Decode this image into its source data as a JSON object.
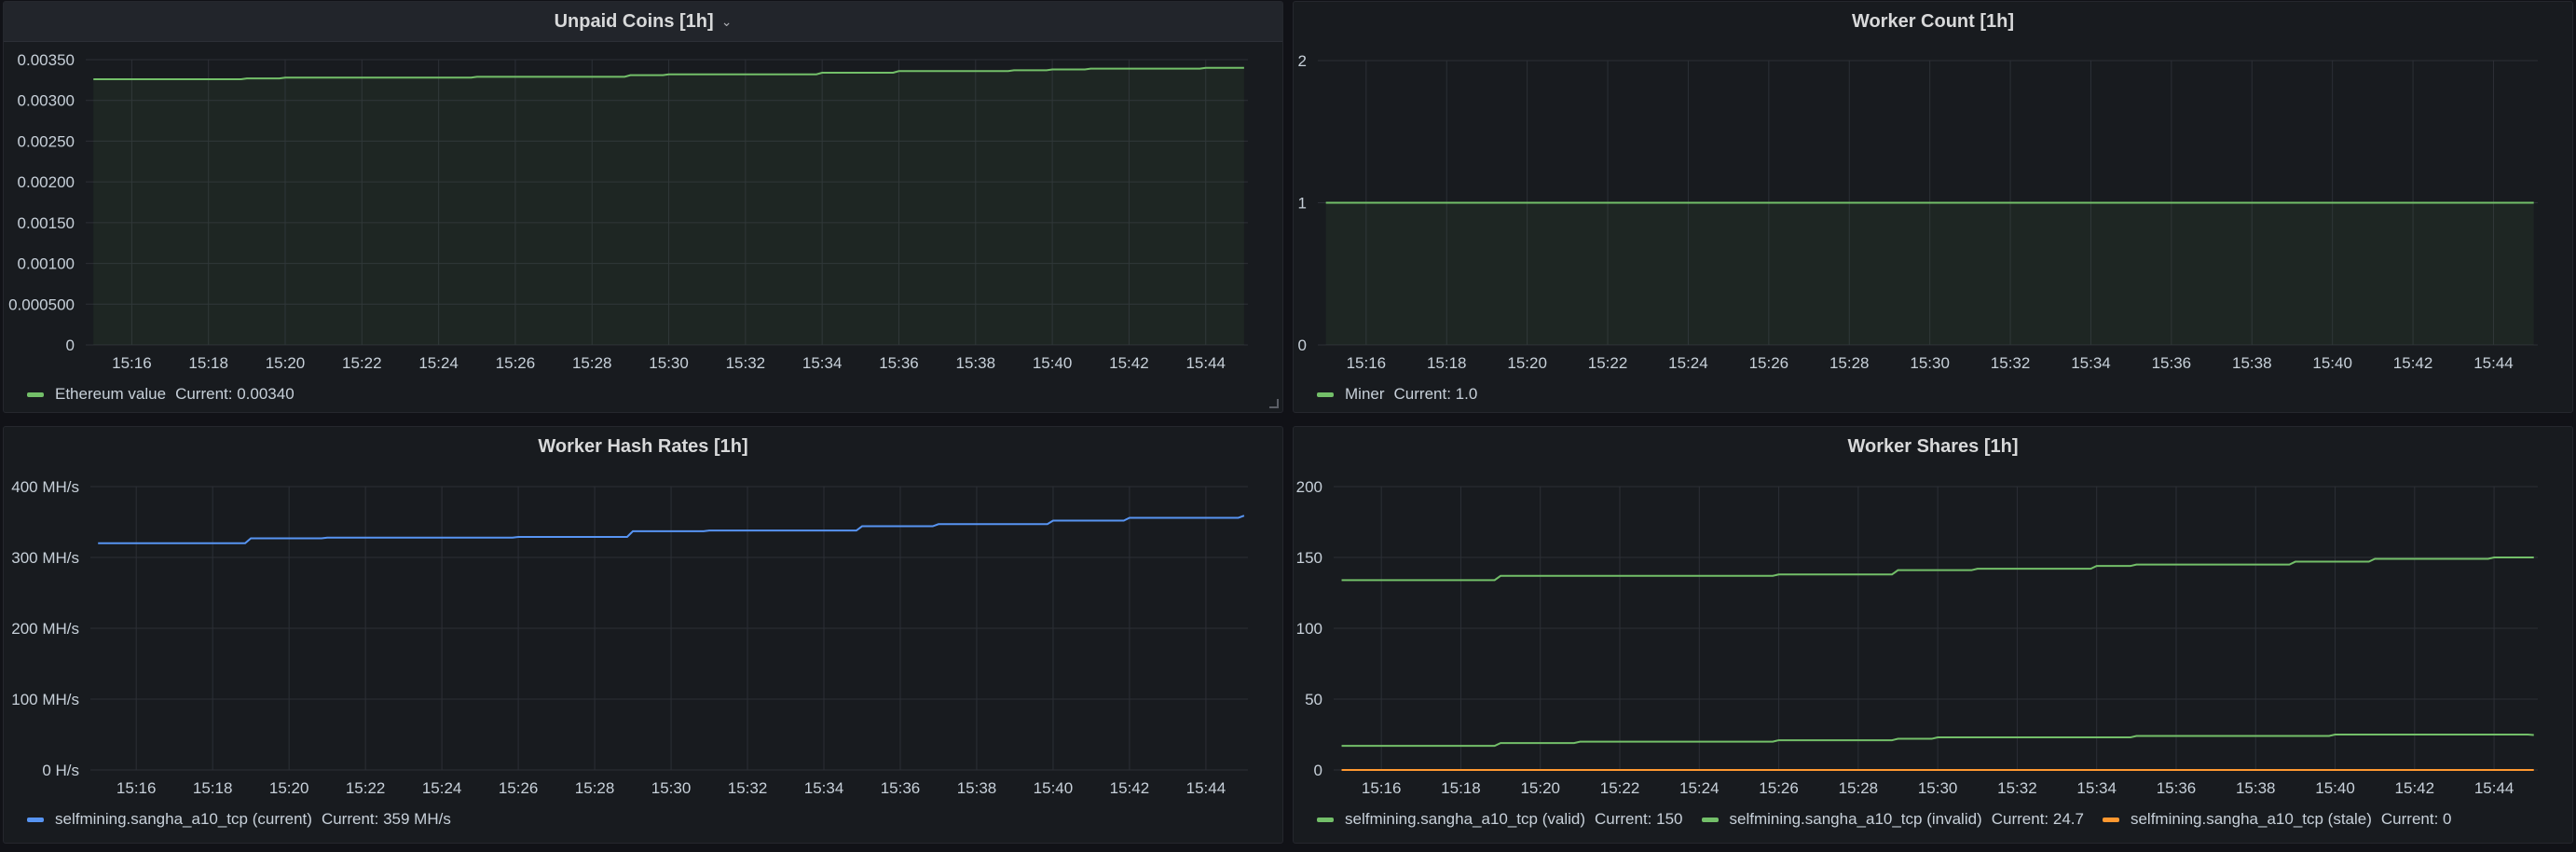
{
  "chart_data": [
    {
      "type": "area",
      "title": "Unpaid Coins [1h]",
      "x": [
        "15:15",
        "15:16",
        "15:17",
        "15:18",
        "15:19",
        "15:20",
        "15:21",
        "15:22",
        "15:23",
        "15:24",
        "15:25",
        "15:26",
        "15:27",
        "15:28",
        "15:29",
        "15:30",
        "15:31",
        "15:32",
        "15:33",
        "15:34",
        "15:35",
        "15:36",
        "15:37",
        "15:38",
        "15:39",
        "15:40",
        "15:41",
        "15:42",
        "15:43",
        "15:44",
        "15:45"
      ],
      "xticks": [
        "15:16",
        "15:18",
        "15:20",
        "15:22",
        "15:24",
        "15:26",
        "15:28",
        "15:30",
        "15:32",
        "15:34",
        "15:36",
        "15:38",
        "15:40",
        "15:42",
        "15:44"
      ],
      "yticks": [
        "0",
        "0.000500",
        "0.00100",
        "0.00150",
        "0.00200",
        "0.00250",
        "0.00300",
        "0.00350"
      ],
      "ylim": [
        0,
        0.0035
      ],
      "series": [
        {
          "name": "Ethereum value",
          "color": "#73bf69",
          "values": [
            0.00326,
            0.00326,
            0.00326,
            0.00326,
            0.00327,
            0.00328,
            0.00328,
            0.00328,
            0.00328,
            0.00328,
            0.00329,
            0.00329,
            0.00329,
            0.00329,
            0.00331,
            0.00332,
            0.00332,
            0.00332,
            0.00332,
            0.00334,
            0.00334,
            0.00336,
            0.00336,
            0.00336,
            0.00337,
            0.00338,
            0.00339,
            0.00339,
            0.00339,
            0.0034,
            0.0034
          ],
          "legend_current": "Current: 0.00340"
        }
      ]
    },
    {
      "type": "area",
      "title": "Worker Count [1h]",
      "x": [
        "15:15",
        "15:45"
      ],
      "xticks": [
        "15:16",
        "15:18",
        "15:20",
        "15:22",
        "15:24",
        "15:26",
        "15:28",
        "15:30",
        "15:32",
        "15:34",
        "15:36",
        "15:38",
        "15:40",
        "15:42",
        "15:44"
      ],
      "yticks": [
        "0",
        "1",
        "2"
      ],
      "ylim": [
        0,
        2
      ],
      "series": [
        {
          "name": "Miner",
          "color": "#73bf69",
          "values": [
            1,
            1
          ],
          "legend_current": "Current: 1.0"
        }
      ]
    },
    {
      "type": "line",
      "title": "Worker Hash Rates [1h]",
      "x": [
        "15:15",
        "15:16",
        "15:17",
        "15:18",
        "15:19",
        "15:20",
        "15:21",
        "15:22",
        "15:23",
        "15:24",
        "15:25",
        "15:26",
        "15:27",
        "15:28",
        "15:29",
        "15:30",
        "15:31",
        "15:32",
        "15:33",
        "15:34",
        "15:35",
        "15:36",
        "15:37",
        "15:38",
        "15:39",
        "15:40",
        "15:41",
        "15:42",
        "15:43",
        "15:44",
        "15:45"
      ],
      "xticks": [
        "15:16",
        "15:18",
        "15:20",
        "15:22",
        "15:24",
        "15:26",
        "15:28",
        "15:30",
        "15:32",
        "15:34",
        "15:36",
        "15:38",
        "15:40",
        "15:42",
        "15:44"
      ],
      "yticks": [
        "0 H/s",
        "100 MH/s",
        "200 MH/s",
        "300 MH/s",
        "400 MH/s"
      ],
      "ylim": [
        0,
        400
      ],
      "series": [
        {
          "name": "selfmining.sangha_a10_tcp (current)",
          "color": "#5794f2",
          "values": [
            320,
            320,
            320,
            320,
            327,
            327,
            328,
            328,
            328,
            328,
            328,
            329,
            329,
            329,
            337,
            337,
            338,
            338,
            338,
            338,
            344,
            344,
            347,
            347,
            347,
            352,
            352,
            356,
            356,
            356,
            359
          ],
          "legend_current": "Current: 359 MH/s"
        }
      ]
    },
    {
      "type": "line",
      "title": "Worker Shares [1h]",
      "x": [
        "15:15",
        "15:16",
        "15:17",
        "15:18",
        "15:19",
        "15:20",
        "15:21",
        "15:22",
        "15:23",
        "15:24",
        "15:25",
        "15:26",
        "15:27",
        "15:28",
        "15:29",
        "15:30",
        "15:31",
        "15:32",
        "15:33",
        "15:34",
        "15:35",
        "15:36",
        "15:37",
        "15:38",
        "15:39",
        "15:40",
        "15:41",
        "15:42",
        "15:43",
        "15:44",
        "15:45"
      ],
      "xticks": [
        "15:16",
        "15:18",
        "15:20",
        "15:22",
        "15:24",
        "15:26",
        "15:28",
        "15:30",
        "15:32",
        "15:34",
        "15:36",
        "15:38",
        "15:40",
        "15:42",
        "15:44"
      ],
      "yticks": [
        "0",
        "50",
        "100",
        "150",
        "200"
      ],
      "ylim": [
        0,
        200
      ],
      "series": [
        {
          "name": "selfmining.sangha_a10_tcp (valid)",
          "color": "#73bf69",
          "values": [
            134,
            134,
            134,
            134,
            137,
            137,
            137,
            137,
            137,
            137,
            137,
            138,
            138,
            138,
            141,
            141,
            142,
            142,
            142,
            144,
            145,
            145,
            145,
            145,
            147,
            147,
            149,
            149,
            149,
            150,
            150
          ],
          "legend_current": "Current: 150"
        },
        {
          "name": "selfmining.sangha_a10_tcp (invalid)",
          "color": "#73bf69",
          "values": [
            17,
            17,
            17,
            17,
            19,
            19,
            20,
            20,
            20,
            20,
            20,
            21,
            21,
            21,
            22,
            23,
            23,
            23,
            23,
            23,
            24,
            24,
            24,
            24,
            24,
            25,
            25,
            25,
            25,
            25,
            24.7
          ],
          "legend_current": "Current: 24.7"
        },
        {
          "name": "selfmining.sangha_a10_tcp (stale)",
          "color": "#ff9830",
          "values": [
            0,
            0,
            0,
            0,
            0,
            0,
            0,
            0,
            0,
            0,
            0,
            0,
            0,
            0,
            0,
            0,
            0,
            0,
            0,
            0,
            0,
            0,
            0,
            0,
            0,
            0,
            0,
            0,
            0,
            0,
            0
          ],
          "legend_current": "Current: 0"
        }
      ]
    }
  ]
}
